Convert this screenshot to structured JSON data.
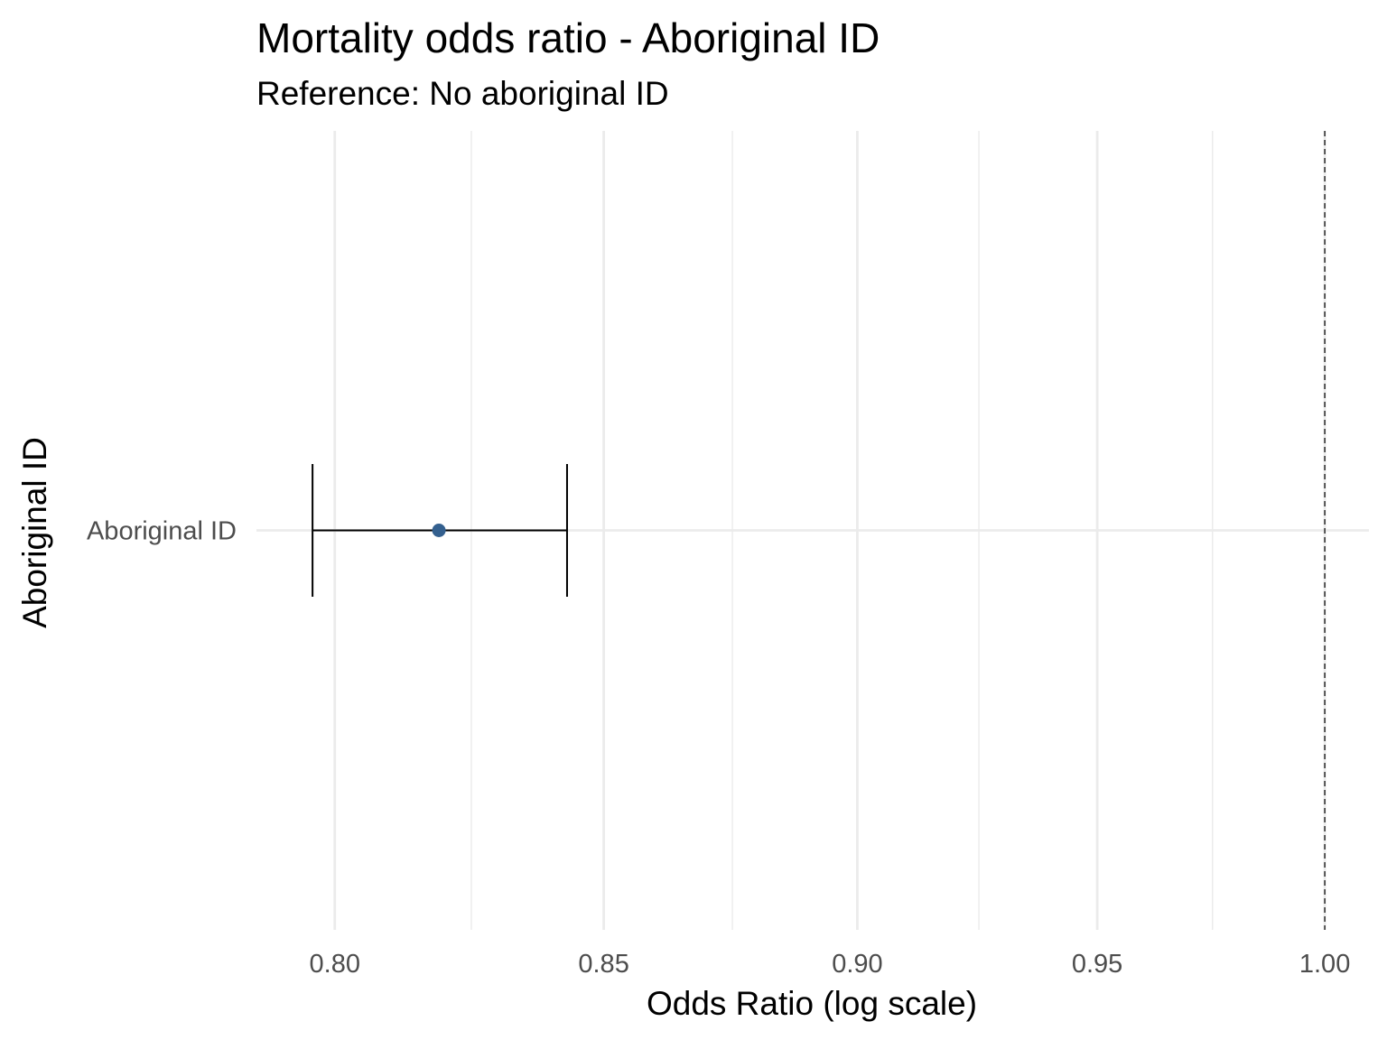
{
  "chart_data": {
    "type": "scatter",
    "title": "Mortality odds ratio - Aboriginal ID",
    "subtitle": "Reference: No aboriginal ID",
    "xlabel": "Odds Ratio (log scale)",
    "ylabel": "Aboriginal ID",
    "x_scale": "log",
    "xlim": [
      0.786,
      1.01
    ],
    "x_ticks": [
      0.8,
      0.85,
      0.9,
      0.95,
      1.0
    ],
    "x_tick_labels": [
      "0.80",
      "0.85",
      "0.90",
      "0.95",
      "1.00"
    ],
    "x_minor_ticks": [
      0.825,
      0.875,
      0.925,
      0.975
    ],
    "categories": [
      "Aboriginal ID"
    ],
    "points": [
      {
        "category": "Aboriginal ID",
        "estimate": 0.819,
        "lower": 0.796,
        "upper": 0.843
      }
    ],
    "reference_line": 1.0,
    "grid": true,
    "legend": "none",
    "colors": {
      "point": "#34608f",
      "errorbar": "#000000",
      "grid": "#ebebeb",
      "reference_line": "#333333"
    }
  }
}
